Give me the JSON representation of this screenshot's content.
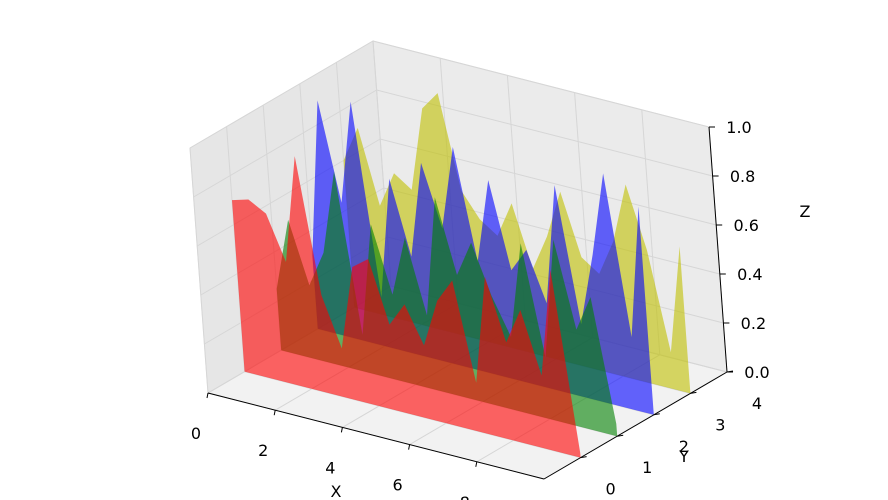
{
  "chart_data": {
    "type": "area",
    "projection": "3d",
    "title": "",
    "xlabel": "X",
    "ylabel": "Y",
    "zlabel": "Z",
    "xlim": [
      0,
      10
    ],
    "ylim": [
      -1,
      4
    ],
    "zlim": [
      0,
      1
    ],
    "grid": true,
    "legend": "none",
    "x_ticks": [
      "0",
      "2",
      "4",
      "6",
      "8"
    ],
    "y_ticks": [
      "0",
      "1",
      "2",
      "3",
      "4"
    ],
    "z_ticks": [
      "0.0",
      "0.2",
      "0.4",
      "0.6",
      "0.8",
      "1.0"
    ],
    "x": [
      0,
      0.5,
      1,
      1.5,
      2,
      2.5,
      3,
      3.5,
      4,
      4.5,
      5,
      5.5,
      6,
      6.5,
      7,
      7.5,
      8,
      8.5,
      9,
      9.5,
      10
    ],
    "series": [
      {
        "y": 0,
        "color": "#ff0000",
        "values": [
          0.7,
          0.72,
          0.68,
          0.5,
          0.95,
          0.4,
          0.2,
          0.55,
          0.6,
          0.35,
          0.45,
          0.3,
          0.5,
          0.6,
          0.2,
          0.65,
          0.4,
          0.55,
          0.3,
          0.75,
          0.02
        ]
      },
      {
        "y": 1,
        "color": "#008000",
        "values": [
          0.25,
          0.55,
          0.3,
          0.45,
          0.8,
          0.15,
          0.62,
          0.35,
          0.6,
          0.3,
          0.8,
          0.5,
          0.65,
          0.45,
          0.3,
          0.7,
          0.25,
          0.75,
          0.4,
          0.55,
          0.05
        ]
      },
      {
        "y": 2,
        "color": "#0000ff",
        "values": [
          0.3,
          0.95,
          0.55,
          0.98,
          0.2,
          0.7,
          0.4,
          0.8,
          0.55,
          0.9,
          0.45,
          0.8,
          0.45,
          0.55,
          0.35,
          0.85,
          0.3,
          0.6,
          0.95,
          0.3,
          0.85
        ]
      },
      {
        "y": 3,
        "color": "#bfbf00",
        "values": [
          0.6,
          0.75,
          0.45,
          0.6,
          0.55,
          0.9,
          0.98,
          0.6,
          0.5,
          0.45,
          0.6,
          0.35,
          0.5,
          0.7,
          0.45,
          0.4,
          0.55,
          0.8,
          0.55,
          0.15,
          0.6
        ]
      }
    ]
  }
}
